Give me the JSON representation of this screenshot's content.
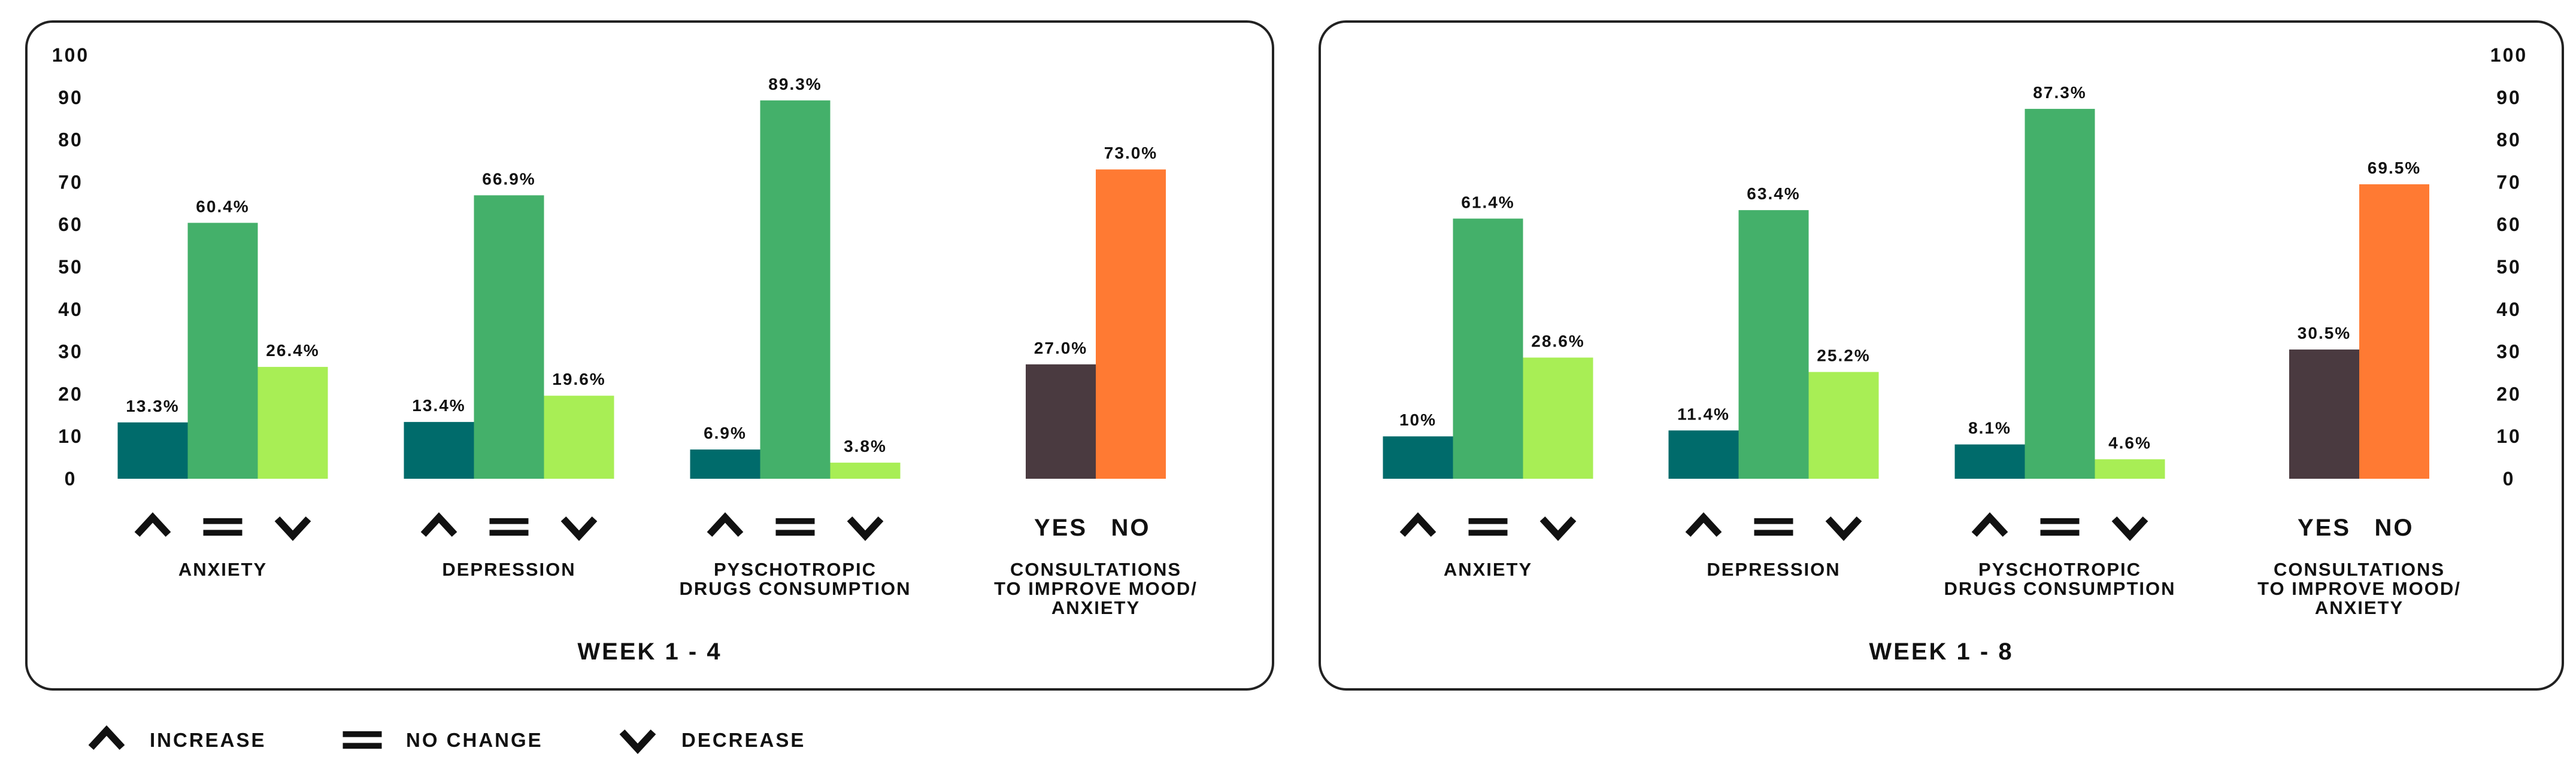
{
  "colors": {
    "increase": "#006b6b",
    "no_change": "#44b06a",
    "decrease": "#a8ee55",
    "yes": "#4a3a40",
    "no": "#ff7a33",
    "frame": "#222222"
  },
  "legend": [
    {
      "symbol": "increase-icon",
      "label": "INCREASE"
    },
    {
      "symbol": "no-change-icon",
      "label": "NO CHANGE"
    },
    {
      "symbol": "decrease-icon",
      "label": "DECREASE"
    }
  ],
  "chart_data": [
    {
      "type": "bar",
      "title": "WEEK 1 - 4",
      "ylim": [
        0,
        100
      ],
      "yticks": [
        "0",
        "10",
        "20",
        "30",
        "40",
        "50",
        "60",
        "70",
        "80",
        "90",
        "100"
      ],
      "axis_side": "left",
      "groups": [
        {
          "label": [
            "ANXIETY"
          ],
          "kind": "change",
          "values": [
            13.3,
            60.4,
            26.4
          ],
          "value_labels": [
            "13.3%",
            "60.4%",
            "26.4%"
          ]
        },
        {
          "label": [
            "DEPRESSION"
          ],
          "kind": "change",
          "values": [
            13.4,
            66.9,
            19.6
          ],
          "value_labels": [
            "13.4%",
            "66.9%",
            "19.6%"
          ]
        },
        {
          "label": [
            "PYSCHOTROPIC",
            "DRUGS CONSUMPTION"
          ],
          "kind": "change",
          "values": [
            6.9,
            89.3,
            3.8
          ],
          "value_labels": [
            "6.9%",
            "89.3%",
            "3.8%"
          ]
        },
        {
          "label": [
            "CONSULTATIONS",
            "TO IMPROVE MOOD/",
            "ANXIETY"
          ],
          "kind": "yesno",
          "categories": [
            "YES",
            "NO"
          ],
          "values": [
            27.0,
            73.0
          ],
          "value_labels": [
            "27.0%",
            "73.0%"
          ]
        }
      ]
    },
    {
      "type": "bar",
      "title": "WEEK 1 - 8",
      "ylim": [
        0,
        100
      ],
      "yticks": [
        "0",
        "10",
        "20",
        "30",
        "40",
        "50",
        "60",
        "70",
        "80",
        "90",
        "100"
      ],
      "axis_side": "right",
      "groups": [
        {
          "label": [
            "ANXIETY"
          ],
          "kind": "change",
          "values": [
            10,
            61.4,
            28.6
          ],
          "value_labels": [
            "10%",
            "61.4%",
            "28.6%"
          ]
        },
        {
          "label": [
            "DEPRESSION"
          ],
          "kind": "change",
          "values": [
            11.4,
            63.4,
            25.2
          ],
          "value_labels": [
            "11.4%",
            "63.4%",
            "25.2%"
          ]
        },
        {
          "label": [
            "PYSCHOTROPIC",
            "DRUGS CONSUMPTION"
          ],
          "kind": "change",
          "values": [
            8.1,
            87.3,
            4.6
          ],
          "value_labels": [
            "8.1%",
            "87.3%",
            "4.6%"
          ]
        },
        {
          "label": [
            "CONSULTATIONS",
            "TO IMPROVE MOOD/",
            "ANXIETY"
          ],
          "kind": "yesno",
          "categories": [
            "YES",
            "NO"
          ],
          "values": [
            30.5,
            69.5
          ],
          "value_labels": [
            "30.5%",
            "69.5%"
          ]
        }
      ]
    }
  ]
}
